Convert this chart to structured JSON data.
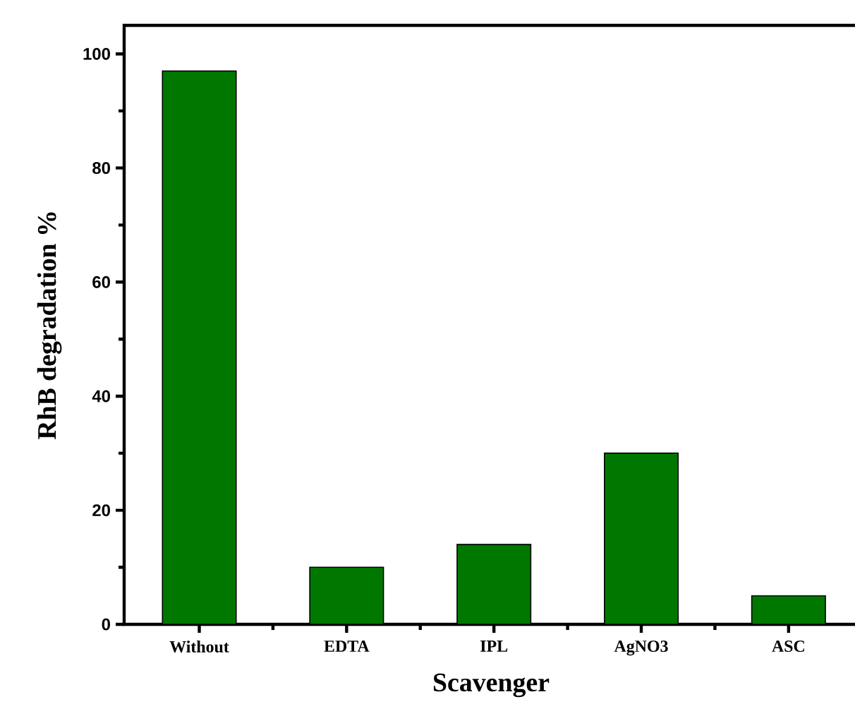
{
  "chart_data": {
    "type": "bar",
    "xlabel": "Scavenger",
    "ylabel": "RhB degradation %",
    "categories": [
      "Without",
      "EDTA",
      "IPL",
      "AgNO3",
      "ASC"
    ],
    "values": [
      97,
      10,
      14,
      30,
      5
    ],
    "color": "#007800",
    "ylim": [
      0,
      105
    ],
    "yticks": [
      0,
      20,
      40,
      60,
      80,
      100
    ]
  }
}
